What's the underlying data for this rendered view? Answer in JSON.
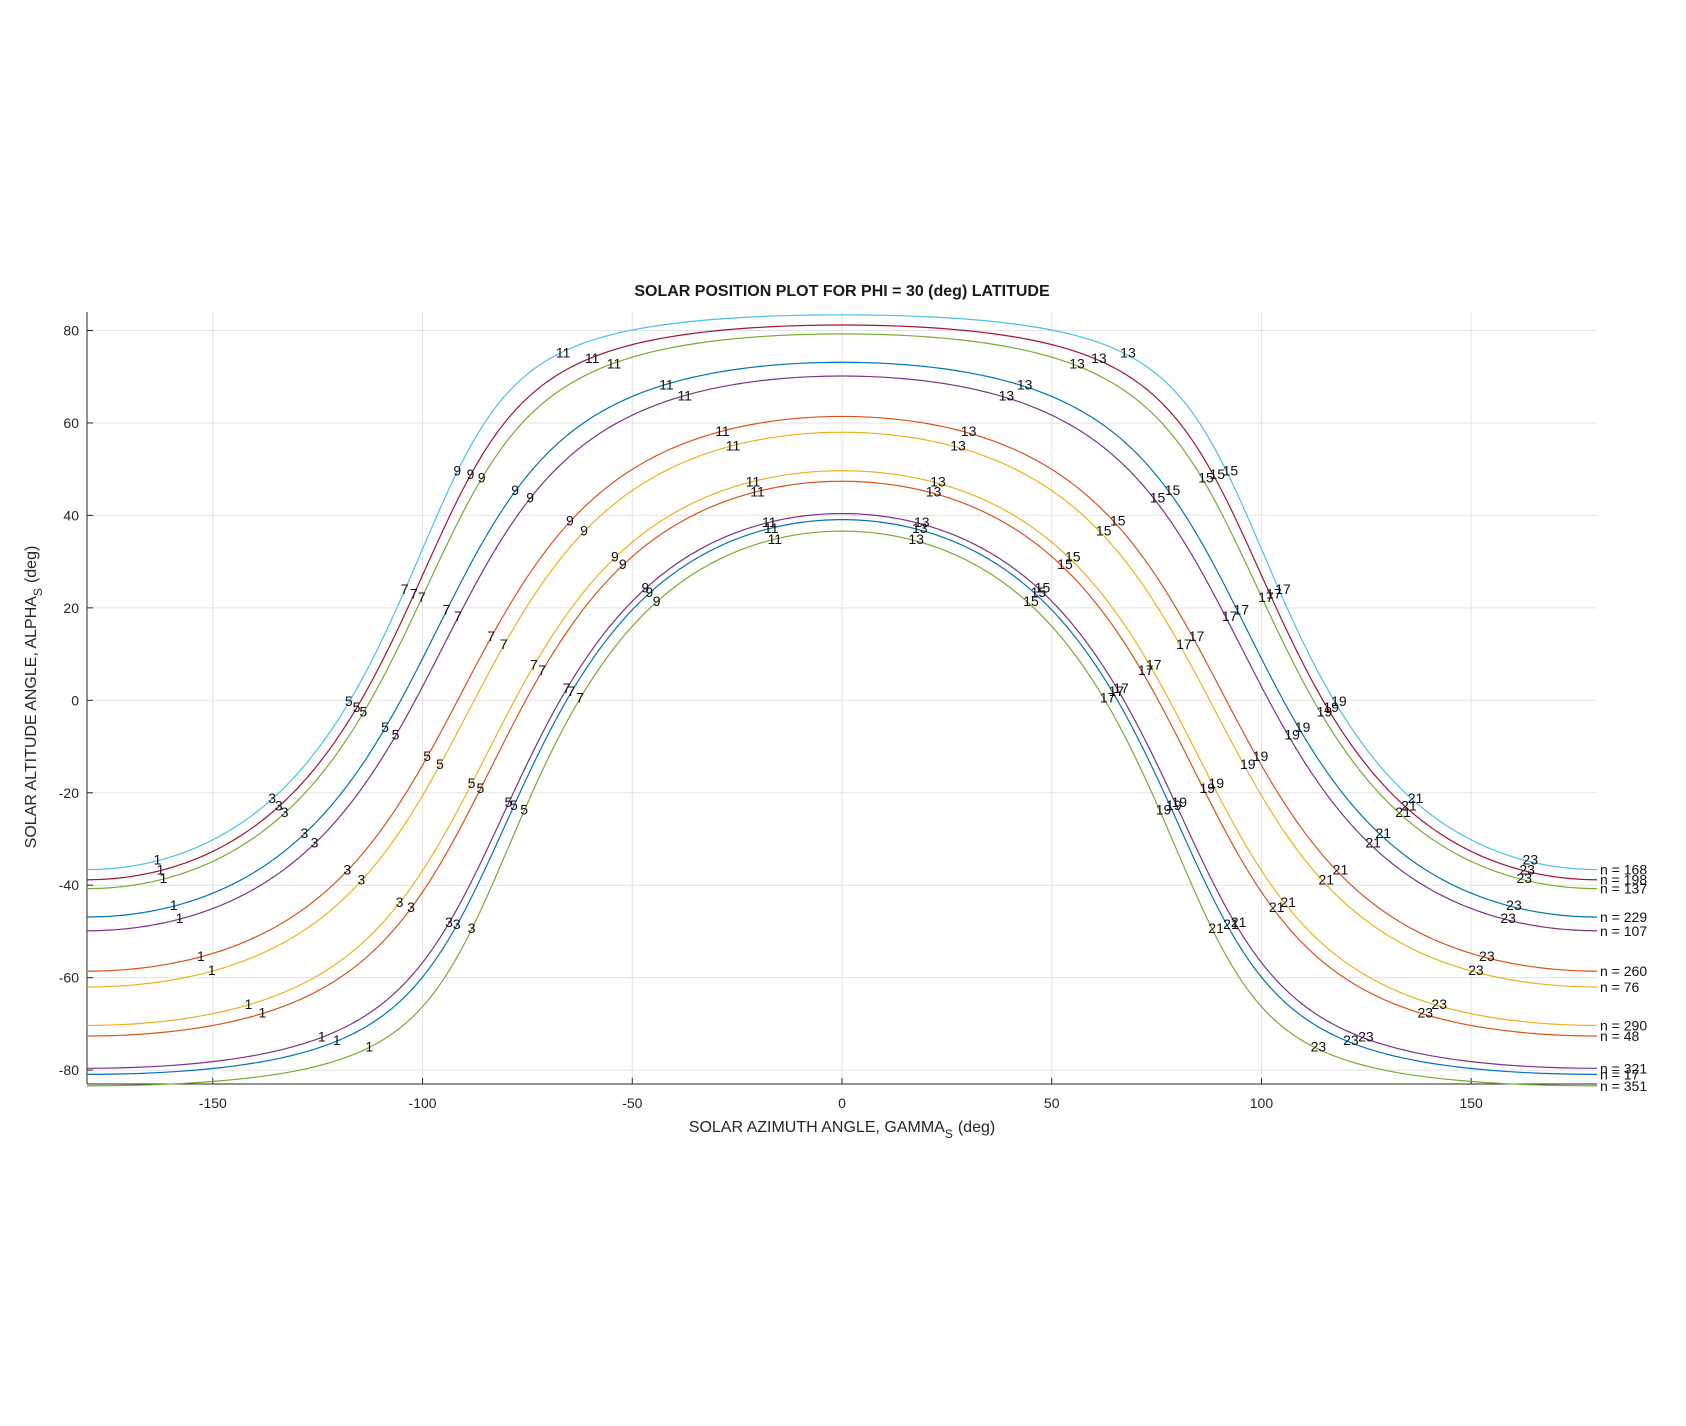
{
  "chart_data": {
    "type": "line",
    "title": "SOLAR POSITION PLOT FOR PHI = 30 (deg) LATITUDE",
    "xlabel": "SOLAR AZIMUTH ANGLE, GAMMA",
    "xlabel_sub": "S",
    "xlabel_unit": "(deg)",
    "ylabel": "SOLAR ALTITUDE ANGLE, ALPHA",
    "ylabel_sub": "S",
    "ylabel_unit": "(deg)",
    "xlim": [
      -180,
      180
    ],
    "ylim": [
      -83,
      84
    ],
    "xticks": [
      -150,
      -100,
      -50,
      0,
      50,
      100,
      150
    ],
    "yticks": [
      -80,
      -60,
      -40,
      -20,
      0,
      20,
      40,
      60,
      80
    ],
    "grid": true,
    "latitude_deg": 30,
    "hour_marks": [
      1,
      3,
      5,
      7,
      9,
      11,
      13,
      15,
      17,
      19,
      21,
      23
    ],
    "colors": [
      "#0072BD",
      "#D95319",
      "#EDB120",
      "#7E2F8E",
      "#77AC30",
      "#4DBEEE",
      "#A2142F"
    ],
    "series": [
      {
        "name": "n = 17",
        "color": "#0072BD"
      },
      {
        "name": "n = 48",
        "color": "#D95319"
      },
      {
        "name": "n = 76",
        "color": "#EDB120"
      },
      {
        "name": "n = 107",
        "color": "#7E2F8E"
      },
      {
        "name": "n = 137",
        "color": "#77AC30"
      },
      {
        "name": "n = 168",
        "color": "#4DBEEE"
      },
      {
        "name": "n = 198",
        "color": "#A2142F"
      },
      {
        "name": "n = 229",
        "color": "#0072BD"
      },
      {
        "name": "n = 260",
        "color": "#D95319"
      },
      {
        "name": "n = 290",
        "color": "#EDB120"
      },
      {
        "name": "n = 321",
        "color": "#7E2F8E"
      },
      {
        "name": "n = 351",
        "color": "#77AC30"
      }
    ]
  }
}
